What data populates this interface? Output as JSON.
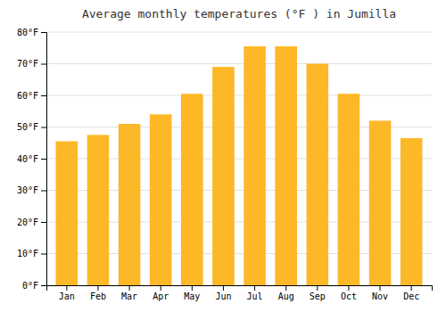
{
  "chart_data": {
    "type": "bar",
    "title": "Average monthly temperatures (°F ) in Jumilla",
    "categories": [
      "Jan",
      "Feb",
      "Mar",
      "Apr",
      "May",
      "Jun",
      "Jul",
      "Aug",
      "Sep",
      "Oct",
      "Nov",
      "Dec"
    ],
    "values": [
      45.5,
      47.5,
      51.0,
      54.0,
      60.5,
      69.0,
      75.5,
      75.5,
      70.0,
      60.5,
      52.0,
      46.5
    ],
    "color": "#FDB827",
    "ylim": [
      0,
      80
    ],
    "yticks": [
      {
        "value": 0,
        "label": "0°F"
      },
      {
        "value": 10,
        "label": "10°F"
      },
      {
        "value": 20,
        "label": "20°F"
      },
      {
        "value": 30,
        "label": "30°F"
      },
      {
        "value": 40,
        "label": "40°F"
      },
      {
        "value": 50,
        "label": "50°F"
      },
      {
        "value": 60,
        "label": "60°F"
      },
      {
        "value": 70,
        "label": "70°F"
      },
      {
        "value": 80,
        "label": "80°F"
      }
    ],
    "grid": true
  }
}
